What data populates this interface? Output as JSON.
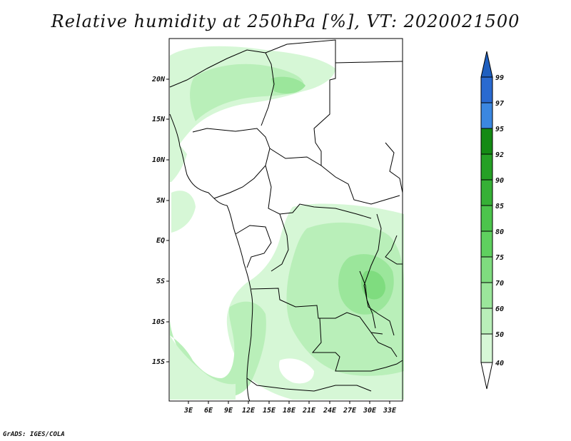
{
  "title": "Relative humidity at 250hPa [%], VT: 2020021500",
  "footer": "GrADS: IGES/COLA",
  "map": {
    "lon_ticks": [
      "3E",
      "6E",
      "9E",
      "12E",
      "15E",
      "18E",
      "21E",
      "24E",
      "27E",
      "30E",
      "33E"
    ],
    "lat_ticks": [
      "20N",
      "15N",
      "10N",
      "5N",
      "EQ",
      "5S",
      "10S",
      "15S"
    ]
  },
  "colorbar": {
    "labels": [
      "99",
      "97",
      "95",
      "92",
      "90",
      "85",
      "80",
      "75",
      "70",
      "60",
      "50",
      "40"
    ],
    "colors": {
      "top_arrow": "#1f5fbf",
      "99": "#2a6ad0",
      "97": "#3b87e0",
      "95": "#148a14",
      "92": "#25a025",
      "90": "#36b036",
      "85": "#4cc44c",
      "80": "#5fd05f",
      "75": "#7fdc7f",
      "70": "#9be69b",
      "60": "#b9efb9",
      "50": "#d6f7d6",
      "40": "#ffffff"
    }
  },
  "field_colors": {
    "rh_40": "#ffffff",
    "rh_50": "#d6f7d6",
    "rh_60": "#b9efb9",
    "rh_70": "#9be69b",
    "rh_75": "#7fdc7f"
  }
}
